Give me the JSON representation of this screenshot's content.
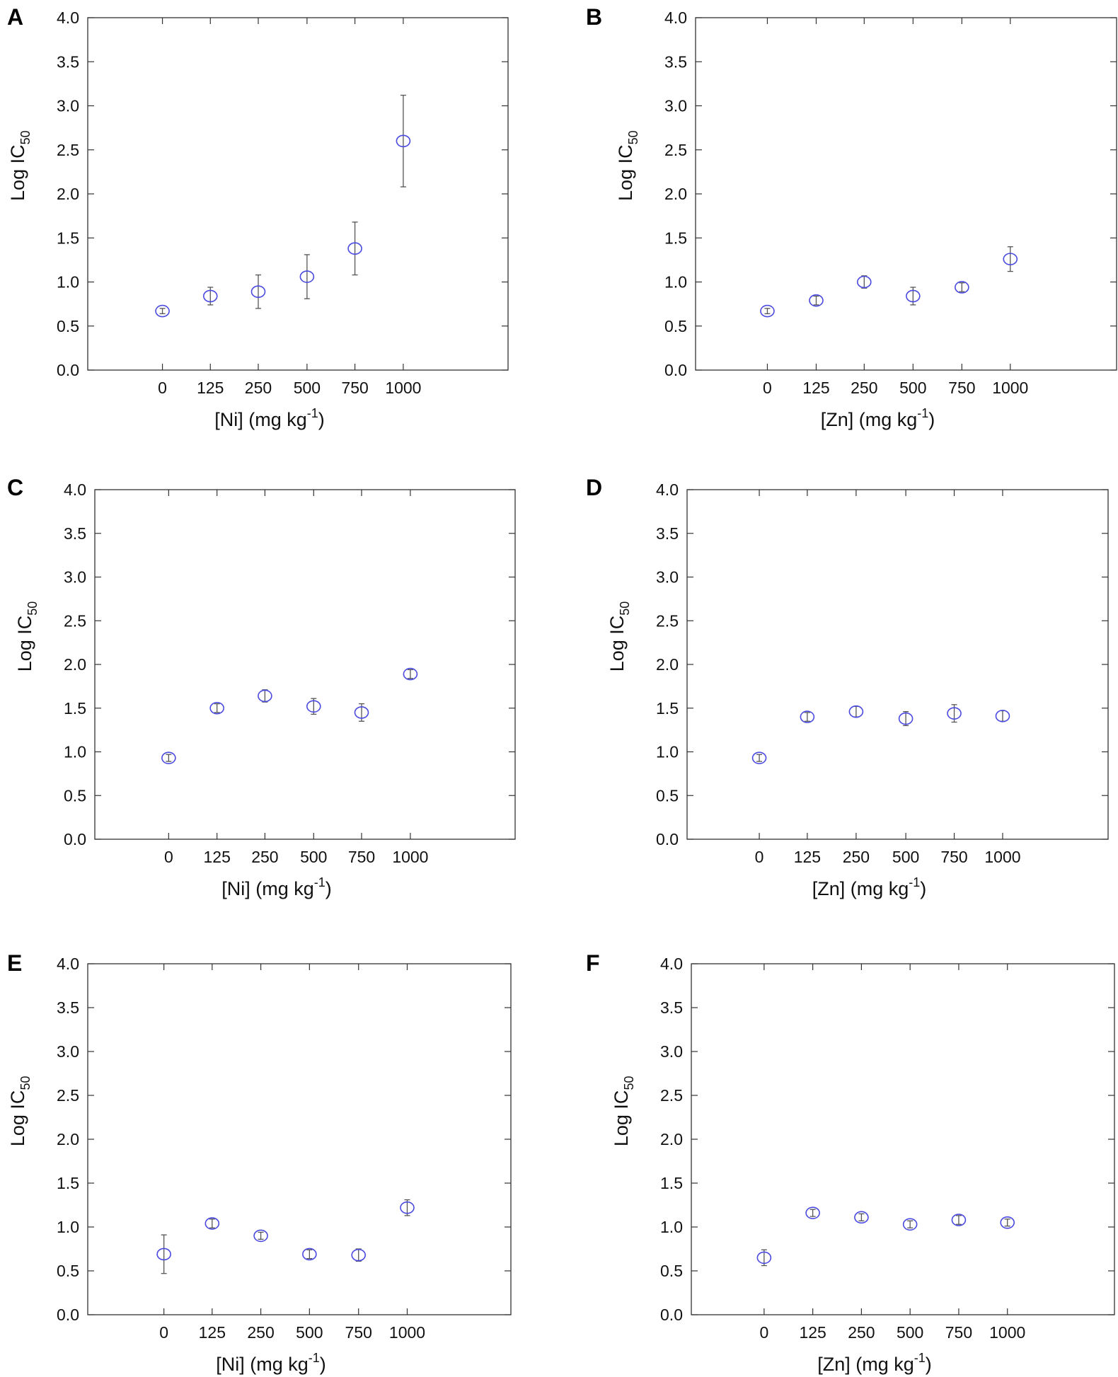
{
  "figure": {
    "panels": [
      {
        "letter": "A",
        "xlabel_main": "[Ni] (mg kg",
        "xlabel_sup": "-1",
        "xlabel_tail": ")"
      },
      {
        "letter": "B",
        "xlabel_main": "[Zn] (mg kg",
        "xlabel_sup": "-1",
        "xlabel_tail": ")"
      },
      {
        "letter": "C",
        "xlabel_main": "[Ni] (mg kg",
        "xlabel_sup": "-1",
        "xlabel_tail": ")"
      },
      {
        "letter": "D",
        "xlabel_main": "[Zn] (mg kg",
        "xlabel_sup": "-1",
        "xlabel_tail": ")"
      },
      {
        "letter": "E",
        "xlabel_main": "[Ni] (mg kg",
        "xlabel_sup": "-1",
        "xlabel_tail": ")"
      },
      {
        "letter": "F",
        "xlabel_main": "[Zn] (mg kg",
        "xlabel_sup": "-1",
        "xlabel_tail": ")"
      }
    ],
    "ylabel_main": "Log IC",
    "ylabel_sub": "50",
    "colors": {
      "marker": "#4a4ae0",
      "errorbar": "#555555",
      "axis": "#333333"
    }
  },
  "chart_data": [
    {
      "type": "scatter",
      "panel": "A",
      "categories": [
        "0",
        "125",
        "250",
        "500",
        "750",
        "1000"
      ],
      "values": [
        0.67,
        0.84,
        0.89,
        1.06,
        1.38,
        2.6
      ],
      "errors": [
        0.03,
        0.1,
        0.19,
        0.25,
        0.3,
        0.52
      ],
      "xlabel": "[Ni] (mg kg-1)",
      "ylabel": "Log IC50",
      "ylim": [
        0,
        4.0
      ],
      "yticks": [
        "0.0",
        "0.5",
        "1.0",
        "1.5",
        "2.0",
        "2.5",
        "3.0",
        "3.5",
        "4.0"
      ],
      "grid": false
    },
    {
      "type": "scatter",
      "panel": "B",
      "categories": [
        "0",
        "125",
        "250",
        "500",
        "750",
        "1000"
      ],
      "values": [
        0.67,
        0.79,
        1.0,
        0.84,
        0.94,
        1.26
      ],
      "errors": [
        0.03,
        0.05,
        0.07,
        0.1,
        0.05,
        0.14
      ],
      "xlabel": "[Zn] (mg kg-1)",
      "ylabel": "Log IC50",
      "ylim": [
        0,
        4.0
      ],
      "yticks": [
        "0.0",
        "0.5",
        "1.0",
        "1.5",
        "2.0",
        "2.5",
        "3.0",
        "3.5",
        "4.0"
      ],
      "grid": false
    },
    {
      "type": "scatter",
      "panel": "C",
      "categories": [
        "0",
        "125",
        "250",
        "500",
        "750",
        "1000"
      ],
      "values": [
        0.93,
        1.5,
        1.64,
        1.52,
        1.45,
        1.89
      ],
      "errors": [
        0.04,
        0.05,
        0.07,
        0.09,
        0.1,
        0.05
      ],
      "xlabel": "[Ni] (mg kg-1)",
      "ylabel": "Log IC50",
      "ylim": [
        0,
        4.0
      ],
      "yticks": [
        "0.0",
        "0.5",
        "1.0",
        "1.5",
        "2.0",
        "2.5",
        "3.0",
        "3.5",
        "4.0"
      ],
      "grid": false
    },
    {
      "type": "scatter",
      "panel": "D",
      "categories": [
        "0",
        "125",
        "250",
        "500",
        "750",
        "1000"
      ],
      "values": [
        0.93,
        1.4,
        1.46,
        1.38,
        1.44,
        1.41
      ],
      "errors": [
        0.04,
        0.05,
        0.06,
        0.08,
        0.1,
        0.06
      ],
      "xlabel": "[Zn] (mg kg-1)",
      "ylabel": "Log IC50",
      "ylim": [
        0,
        4.0
      ],
      "yticks": [
        "0.0",
        "0.5",
        "1.0",
        "1.5",
        "2.0",
        "2.5",
        "3.0",
        "3.5",
        "4.0"
      ],
      "grid": false
    },
    {
      "type": "scatter",
      "panel": "E",
      "categories": [
        "0",
        "125",
        "250",
        "500",
        "750",
        "1000"
      ],
      "values": [
        0.69,
        1.04,
        0.9,
        0.69,
        0.68,
        1.22
      ],
      "errors": [
        0.22,
        0.05,
        0.04,
        0.05,
        0.07,
        0.09
      ],
      "xlabel": "[Ni] (mg kg-1)",
      "ylabel": "Log IC50",
      "ylim": [
        0,
        4.0
      ],
      "yticks": [
        "0.0",
        "0.5",
        "1.0",
        "1.5",
        "2.0",
        "2.5",
        "3.0",
        "3.5",
        "4.0"
      ],
      "grid": false
    },
    {
      "type": "scatter",
      "panel": "F",
      "categories": [
        "0",
        "125",
        "250",
        "500",
        "750",
        "1000"
      ],
      "values": [
        0.65,
        1.16,
        1.11,
        1.03,
        1.08,
        1.05
      ],
      "errors": [
        0.09,
        0.04,
        0.04,
        0.04,
        0.05,
        0.04
      ],
      "xlabel": "[Zn] (mg kg-1)",
      "ylabel": "Log IC50",
      "ylim": [
        0,
        4.0
      ],
      "yticks": [
        "0.0",
        "0.5",
        "1.0",
        "1.5",
        "2.0",
        "2.5",
        "3.0",
        "3.5",
        "4.0"
      ],
      "grid": false
    }
  ]
}
